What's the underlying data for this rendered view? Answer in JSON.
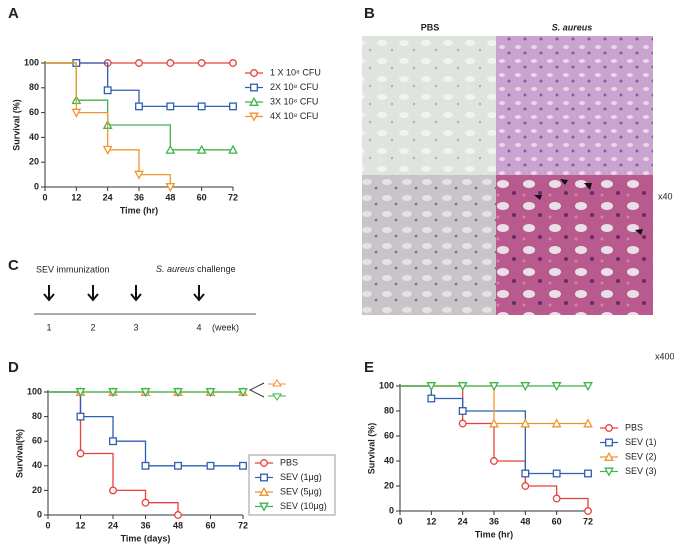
{
  "panels": [
    "A",
    "B",
    "C",
    "D",
    "E"
  ],
  "histology": {
    "columns": [
      "PBS",
      "S. aureus"
    ],
    "magnifications": [
      "x40",
      "x400"
    ]
  },
  "timeline": {
    "immunization": "SEV immunization",
    "organism": "S. aureus",
    "challenge": "challenge",
    "weeks": [
      "1",
      "2",
      "3",
      "4"
    ],
    "unit": "(week)"
  },
  "chart_data": [
    {
      "type": "line",
      "step": true,
      "xlabel": "Time (hr)",
      "ylabel": "Survival (%)",
      "xlim": [
        0,
        72
      ],
      "xticks": [
        0,
        12,
        24,
        36,
        48,
        60,
        72
      ],
      "ylim": [
        0,
        100
      ],
      "yticks": [
        0,
        20,
        40,
        60,
        80,
        100
      ],
      "legend_frame": false,
      "series": [
        {
          "name": "1 X 10⁸ CFU",
          "color": "#e8413c",
          "marker": "circle",
          "x": [
            0,
            12,
            24,
            36,
            48,
            60,
            72
          ],
          "values": [
            100,
            100,
            100,
            100,
            100,
            100,
            100
          ]
        },
        {
          "name": "2X 10⁸ CFU",
          "color": "#2f5fb0",
          "marker": "square",
          "x": [
            0,
            12,
            24,
            36,
            48,
            60,
            72
          ],
          "values": [
            100,
            100,
            78,
            65,
            65,
            65,
            65
          ]
        },
        {
          "name": "3X 10⁸ CFU",
          "color": "#3cb54a",
          "marker": "triangle",
          "x": [
            0,
            12,
            24,
            48,
            60,
            72
          ],
          "values": [
            100,
            70,
            50,
            30,
            30,
            30
          ]
        },
        {
          "name": "4X 10⁸ CFU",
          "color": "#f0962e",
          "marker": "triangle-down",
          "x": [
            0,
            12,
            24,
            36,
            48
          ],
          "values": [
            100,
            60,
            30,
            10,
            0
          ]
        }
      ]
    },
    {
      "type": "line",
      "step": true,
      "xlabel": "Time (days)",
      "ylabel": "Survival(%)",
      "xlim": [
        0,
        72
      ],
      "xticks": [
        0,
        12,
        24,
        36,
        48,
        60,
        72
      ],
      "ylim": [
        0,
        100
      ],
      "yticks": [
        0,
        20,
        40,
        60,
        80,
        100
      ],
      "legend_frame": true,
      "series": [
        {
          "name": "PBS",
          "color": "#e8413c",
          "marker": "circle",
          "x": [
            0,
            12,
            24,
            36,
            48
          ],
          "values": [
            100,
            50,
            20,
            10,
            0
          ]
        },
        {
          "name": "SEV (1μg)",
          "color": "#2f5fb0",
          "marker": "square",
          "x": [
            0,
            12,
            24,
            36,
            48,
            60,
            72
          ],
          "values": [
            100,
            80,
            60,
            40,
            40,
            40,
            40
          ]
        },
        {
          "name": "SEV (5μg)",
          "color": "#f0962e",
          "marker": "triangle",
          "x": [
            0,
            12,
            24,
            36,
            48,
            60,
            72
          ],
          "values": [
            100,
            100,
            100,
            100,
            100,
            100,
            100
          ]
        },
        {
          "name": "SEV (10μg)",
          "color": "#3cb54a",
          "marker": "triangle-down",
          "x": [
            0,
            12,
            24,
            36,
            48,
            60,
            72
          ],
          "values": [
            100,
            100,
            100,
            100,
            100,
            100,
            100
          ]
        }
      ]
    },
    {
      "type": "line",
      "step": true,
      "xlabel": "Time (hr)",
      "ylabel": "Survival (%)",
      "xlim": [
        0,
        72
      ],
      "xticks": [
        0,
        12,
        24,
        36,
        48,
        60,
        72
      ],
      "ylim": [
        0,
        100
      ],
      "yticks": [
        0,
        20,
        40,
        60,
        80,
        100
      ],
      "legend_frame": false,
      "series": [
        {
          "name": "PBS",
          "color": "#e8413c",
          "marker": "circle",
          "x": [
            0,
            24,
            36,
            48,
            60,
            72
          ],
          "values": [
            100,
            70,
            40,
            20,
            10,
            0
          ]
        },
        {
          "name": "SEV (1)",
          "color": "#2f5fb0",
          "marker": "square",
          "x": [
            0,
            12,
            24,
            48,
            60,
            72
          ],
          "values": [
            100,
            90,
            80,
            30,
            30,
            30
          ]
        },
        {
          "name": "SEV (2)",
          "color": "#f0962e",
          "marker": "triangle",
          "x": [
            0,
            36,
            48,
            60,
            72
          ],
          "values": [
            100,
            70,
            70,
            70,
            70
          ]
        },
        {
          "name": "SEV (3)",
          "color": "#3cb54a",
          "marker": "triangle-down",
          "x": [
            0,
            12,
            24,
            36,
            48,
            60,
            72
          ],
          "values": [
            100,
            100,
            100,
            100,
            100,
            100,
            100
          ]
        }
      ]
    }
  ]
}
